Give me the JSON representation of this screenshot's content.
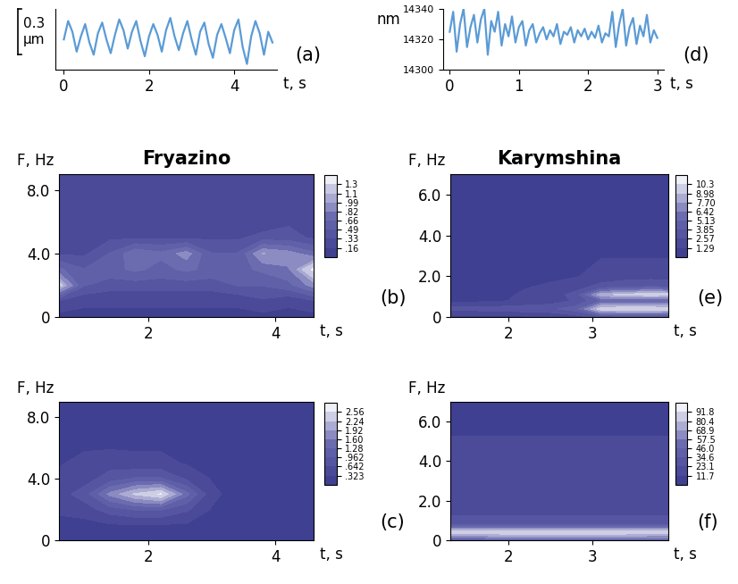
{
  "chart_data": [
    {
      "type": "line",
      "annotations": [
        "(a)"
      ],
      "xlabel": "t, s",
      "color": "#5b9bd5",
      "scale_bar": {
        "value": 0.3,
        "label": "0.3\nμm"
      },
      "x": [
        0.0,
        0.1,
        0.2,
        0.3,
        0.4,
        0.5,
        0.6,
        0.7,
        0.8,
        0.9,
        1.0,
        1.1,
        1.2,
        1.3,
        1.4,
        1.5,
        1.6,
        1.7,
        1.8,
        1.9,
        2.0,
        2.1,
        2.2,
        2.3,
        2.4,
        2.5,
        2.6,
        2.7,
        2.8,
        2.9,
        3.0,
        3.1,
        3.2,
        3.3,
        3.4,
        3.5,
        3.6,
        3.7,
        3.8,
        3.9,
        4.0,
        4.1,
        4.2,
        4.3,
        4.4,
        4.5,
        4.6,
        4.7,
        4.8,
        4.9
      ],
      "values": [
        0.0,
        0.12,
        0.05,
        -0.08,
        0.02,
        0.1,
        -0.02,
        -0.1,
        0.04,
        0.11,
        0.0,
        -0.09,
        0.03,
        0.13,
        0.06,
        -0.06,
        0.05,
        0.12,
        -0.01,
        -0.11,
        0.02,
        0.1,
        0.03,
        -0.08,
        0.06,
        0.14,
        0.02,
        -0.07,
        0.04,
        0.12,
        0.0,
        -0.1,
        0.05,
        0.11,
        -0.03,
        -0.12,
        0.03,
        0.1,
        0.01,
        -0.09,
        0.06,
        0.13,
        -0.05,
        -0.16,
        0.02,
        0.12,
        0.04,
        -0.1,
        0.05,
        -0.02
      ],
      "xlim": [
        -0.2,
        5.0
      ],
      "xticks": [
        0,
        2,
        4
      ],
      "ylim": [
        -0.2,
        0.2
      ],
      "tick_labels": "x"
    },
    {
      "type": "heatmap",
      "title": "Fryazino",
      "annotations": [
        "(b)"
      ],
      "xlabel": "t, s",
      "ylabel": "F, Hz",
      "x": [
        0.6,
        1.0,
        1.4,
        1.8,
        2.2,
        2.6,
        3.0,
        3.4,
        3.8,
        4.2,
        4.6
      ],
      "y": [
        0,
        1,
        2,
        3,
        4,
        5,
        6,
        7,
        8,
        9
      ],
      "cells": [
        [
          0.1,
          0.1,
          0.1,
          0.1,
          0.1,
          0.1,
          0.1,
          0.1,
          0.1,
          0.1,
          0.1
        ],
        [
          0.3,
          0.2,
          0.2,
          0.2,
          0.2,
          0.2,
          0.2,
          0.2,
          0.3,
          0.2,
          0.3
        ],
        [
          1.2,
          0.5,
          0.4,
          0.4,
          0.4,
          0.4,
          0.4,
          0.5,
          0.5,
          0.6,
          0.9
        ],
        [
          0.7,
          0.5,
          0.6,
          0.7,
          0.6,
          0.7,
          0.6,
          0.6,
          0.7,
          0.8,
          1.35
        ],
        [
          0.3,
          0.3,
          0.5,
          0.8,
          0.7,
          0.9,
          0.5,
          0.5,
          1.0,
          0.9,
          0.7
        ],
        [
          0.2,
          0.3,
          0.3,
          0.3,
          0.3,
          0.3,
          0.3,
          0.3,
          0.4,
          0.4,
          0.3
        ],
        [
          0.2,
          0.2,
          0.2,
          0.3,
          0.2,
          0.2,
          0.2,
          0.2,
          0.2,
          0.3,
          0.2
        ],
        [
          0.2,
          0.3,
          0.2,
          0.2,
          0.2,
          0.2,
          0.3,
          0.2,
          0.2,
          0.2,
          0.2
        ],
        [
          0.3,
          0.2,
          0.2,
          0.2,
          0.3,
          0.2,
          0.2,
          0.3,
          0.2,
          0.2,
          0.2
        ],
        [
          0.2,
          0.2,
          0.2,
          0.2,
          0.2,
          0.2,
          0.2,
          0.2,
          0.2,
          0.2,
          0.2
        ]
      ],
      "xlim": [
        0.6,
        4.6
      ],
      "xticks": [
        2,
        4
      ],
      "ylim": [
        0,
        9
      ],
      "yticks": [
        0,
        {
          "value": 4,
          "label": "4.0"
        },
        {
          "value": 8,
          "label": "8.0"
        }
      ],
      "colorbar_lim": [
        0,
        1.47
      ],
      "colorbar_ticks": [
        {
          "value": 0.16,
          "label": ".16"
        },
        {
          "value": 0.33,
          "label": ".33"
        },
        {
          "value": 0.49,
          "label": ".49"
        },
        {
          "value": 0.66,
          "label": ".66"
        },
        {
          "value": 0.82,
          "label": ".82"
        },
        {
          "value": 0.99,
          "label": ".99"
        },
        1.1,
        1.3
      ]
    },
    {
      "type": "heatmap",
      "annotations": [
        "(c)"
      ],
      "xlabel": "t, s",
      "ylabel": "F, Hz",
      "x": [
        0.6,
        1.0,
        1.4,
        1.8,
        2.2,
        2.6,
        3.0,
        3.4,
        3.8,
        4.2,
        4.6
      ],
      "y": [
        0,
        1,
        2,
        3,
        4,
        5,
        6,
        7,
        8,
        9
      ],
      "cells": [
        [
          0.2,
          0.2,
          0.2,
          0.2,
          0.2,
          0.2,
          0.2,
          0.2,
          0.2,
          0.2,
          0.2
        ],
        [
          0.2,
          0.2,
          0.3,
          0.3,
          0.3,
          0.3,
          0.2,
          0.2,
          0.2,
          0.2,
          0.2
        ],
        [
          0.4,
          0.5,
          0.8,
          1.0,
          1.0,
          0.7,
          0.3,
          0.2,
          0.2,
          0.2,
          0.2
        ],
        [
          0.5,
          0.8,
          1.7,
          2.3,
          2.6,
          1.4,
          0.4,
          0.2,
          0.2,
          0.2,
          0.2
        ],
        [
          0.4,
          0.5,
          0.8,
          1.0,
          1.0,
          0.6,
          0.3,
          0.2,
          0.2,
          0.2,
          0.2
        ],
        [
          0.3,
          0.4,
          0.5,
          0.4,
          0.4,
          0.3,
          0.2,
          0.2,
          0.2,
          0.2,
          0.2
        ],
        [
          0.3,
          0.3,
          0.3,
          0.3,
          0.3,
          0.2,
          0.2,
          0.2,
          0.2,
          0.2,
          0.2
        ],
        [
          0.2,
          0.3,
          0.2,
          0.2,
          0.2,
          0.2,
          0.2,
          0.2,
          0.2,
          0.2,
          0.2
        ],
        [
          0.2,
          0.2,
          0.2,
          0.2,
          0.2,
          0.2,
          0.2,
          0.2,
          0.2,
          0.2,
          0.2
        ],
        [
          0.2,
          0.2,
          0.2,
          0.2,
          0.2,
          0.2,
          0.2,
          0.2,
          0.2,
          0.2,
          0.2
        ]
      ],
      "xlim": [
        0.6,
        4.6
      ],
      "xticks": [
        2,
        4
      ],
      "ylim": [
        0,
        9
      ],
      "yticks": [
        0,
        {
          "value": 4,
          "label": "4.0"
        },
        {
          "value": 8,
          "label": "8.0"
        }
      ],
      "colorbar_lim": [
        0,
        2.88
      ],
      "colorbar_ticks": [
        {
          "value": 0.323,
          "label": ".323"
        },
        {
          "value": 0.642,
          "label": ".642"
        },
        {
          "value": 0.962,
          "label": ".962"
        },
        1.28,
        {
          "value": 1.6,
          "label": "1.60"
        },
        1.92,
        2.24,
        2.56
      ]
    },
    {
      "type": "line",
      "annotations": [
        "(d)"
      ],
      "xlabel": "t, s",
      "ylabel": "nm",
      "color": "#5b9bd5",
      "x": [
        0.0,
        0.05,
        0.1,
        0.15,
        0.2,
        0.25,
        0.3,
        0.35,
        0.4,
        0.45,
        0.5,
        0.55,
        0.6,
        0.65,
        0.7,
        0.75,
        0.8,
        0.85,
        0.9,
        0.95,
        1.0,
        1.05,
        1.1,
        1.15,
        1.2,
        1.25,
        1.3,
        1.35,
        1.4,
        1.45,
        1.5,
        1.55,
        1.6,
        1.65,
        1.7,
        1.75,
        1.8,
        1.85,
        1.9,
        1.95,
        2.0,
        2.05,
        2.1,
        2.15,
        2.2,
        2.25,
        2.3,
        2.35,
        2.4,
        2.45,
        2.5,
        2.55,
        2.6,
        2.65,
        2.7,
        2.75,
        2.8,
        2.85,
        2.9,
        2.95,
        3.0
      ],
      "values": [
        14325,
        14338,
        14312,
        14330,
        14340,
        14315,
        14328,
        14336,
        14318,
        14333,
        14340,
        14310,
        14332,
        14325,
        14338,
        14316,
        14330,
        14322,
        14335,
        14318,
        14328,
        14332,
        14316,
        14326,
        14330,
        14318,
        14324,
        14328,
        14320,
        14326,
        14322,
        14330,
        14317,
        14325,
        14323,
        14328,
        14318,
        14326,
        14322,
        14327,
        14320,
        14325,
        14321,
        14329,
        14318,
        14324,
        14322,
        14338,
        14315,
        14330,
        14340,
        14316,
        14328,
        14334,
        14317,
        14329,
        14322,
        14336,
        14318,
        14326,
        14321
      ],
      "xlim": [
        -0.1,
        3.1
      ],
      "xticks": [
        0,
        1,
        2,
        3
      ],
      "ylim": [
        14300,
        14340
      ],
      "yticks": [
        14300,
        14320,
        14340
      ]
    },
    {
      "type": "heatmap",
      "title": "Karymshina",
      "annotations": [
        "(e)"
      ],
      "xlabel": "t, s",
      "ylabel": "F, Hz",
      "x": [
        1.3,
        1.6,
        1.9,
        2.2,
        2.5,
        2.8,
        3.1,
        3.4,
        3.7,
        3.9
      ],
      "y": [
        0,
        0.4,
        0.8,
        1.1,
        1.5,
        2,
        3,
        4,
        5,
        6,
        7
      ],
      "cells": [
        [
          1.0,
          1.0,
          1.0,
          1.0,
          1.2,
          2.0,
          3.0,
          3.0,
          3.0,
          3.0
        ],
        [
          3.0,
          3.0,
          3.2,
          3.4,
          3.6,
          4.5,
          9.8,
          10.2,
          10.1,
          10.0
        ],
        [
          1.0,
          1.0,
          1.2,
          1.5,
          1.8,
          2.8,
          5.0,
          5.2,
          5.0,
          5.0
        ],
        [
          1.0,
          1.0,
          1.0,
          1.5,
          2.0,
          3.0,
          8.5,
          9.5,
          9.8,
          9.6
        ],
        [
          0.8,
          0.8,
          1.0,
          1.2,
          1.5,
          2.0,
          3.0,
          3.5,
          3.8,
          3.6
        ],
        [
          0.8,
          0.8,
          0.8,
          1.0,
          1.0,
          1.2,
          1.8,
          2.0,
          2.0,
          2.0
        ],
        [
          0.6,
          0.6,
          0.8,
          0.8,
          0.8,
          1.0,
          1.2,
          1.2,
          1.2,
          1.2
        ],
        [
          0.6,
          0.6,
          0.6,
          0.6,
          0.6,
          0.6,
          0.6,
          0.6,
          0.6,
          0.6
        ],
        [
          0.6,
          0.6,
          0.6,
          0.6,
          0.6,
          0.6,
          0.6,
          0.6,
          0.6,
          0.6
        ],
        [
          0.6,
          0.6,
          0.6,
          0.6,
          0.6,
          0.6,
          0.6,
          0.6,
          0.6,
          0.6
        ],
        [
          0.6,
          0.6,
          0.6,
          0.6,
          0.6,
          0.6,
          0.6,
          0.6,
          0.6,
          0.6
        ]
      ],
      "xlim": [
        1.3,
        3.9
      ],
      "xticks": [
        2,
        3
      ],
      "ylim": [
        0,
        7
      ],
      "yticks": [
        0,
        {
          "value": 2,
          "label": "2.0"
        },
        {
          "value": 4,
          "label": "4.0"
        },
        {
          "value": 6,
          "label": "6.0"
        }
      ],
      "colorbar_lim": [
        0,
        11.55
      ],
      "colorbar_ticks": [
        1.29,
        2.57,
        3.85,
        5.13,
        6.42,
        {
          "value": 7.7,
          "label": "7.70"
        },
        8.98,
        10.3
      ]
    },
    {
      "type": "heatmap",
      "annotations": [
        "(f)"
      ],
      "xlabel": "t, s",
      "ylabel": "F, Hz",
      "x": [
        1.3,
        1.6,
        1.9,
        2.2,
        2.5,
        2.8,
        3.1,
        3.4,
        3.7,
        3.9
      ],
      "y": [
        0,
        0.4,
        0.8,
        1.1,
        1.5,
        2,
        3,
        4,
        5,
        6,
        7
      ],
      "cells": [
        [
          40,
          40,
          42,
          42,
          42,
          42,
          42,
          42,
          42,
          42
        ],
        [
          90,
          91,
          91,
          91,
          91,
          91,
          91,
          91,
          90,
          90
        ],
        [
          30,
          30,
          31,
          31,
          30,
          30,
          30,
          30,
          30,
          30
        ],
        [
          25,
          25,
          25,
          25,
          25,
          25,
          25,
          25,
          25,
          25
        ],
        [
          20,
          20,
          20,
          20,
          20,
          20,
          20,
          20,
          20,
          20
        ],
        [
          18,
          18,
          18,
          18,
          18,
          18,
          18,
          18,
          18,
          18
        ],
        [
          22,
          22,
          22,
          22,
          22,
          22,
          22,
          22,
          22,
          22
        ],
        [
          14,
          14,
          14,
          14,
          14,
          14,
          14,
          14,
          14,
          14
        ],
        [
          12,
          12,
          12,
          12,
          12,
          12,
          12,
          12,
          12,
          12
        ],
        [
          11,
          11,
          11,
          11,
          11,
          11,
          11,
          11,
          11,
          11
        ],
        [
          10,
          10,
          10,
          10,
          10,
          10,
          10,
          10,
          10,
          10
        ]
      ],
      "xlim": [
        1.3,
        3.9
      ],
      "xticks": [
        2,
        3
      ],
      "ylim": [
        0,
        7
      ],
      "yticks": [
        0,
        {
          "value": 2,
          "label": "2.0"
        },
        {
          "value": 4,
          "label": "4.0"
        },
        {
          "value": 6,
          "label": "6.0"
        }
      ],
      "colorbar_lim": [
        0,
        103
      ],
      "colorbar_ticks": [
        11.7,
        23.1,
        34.6,
        {
          "value": 46,
          "label": "46.0"
        },
        57.5,
        68.9,
        80.4,
        91.8
      ]
    }
  ]
}
